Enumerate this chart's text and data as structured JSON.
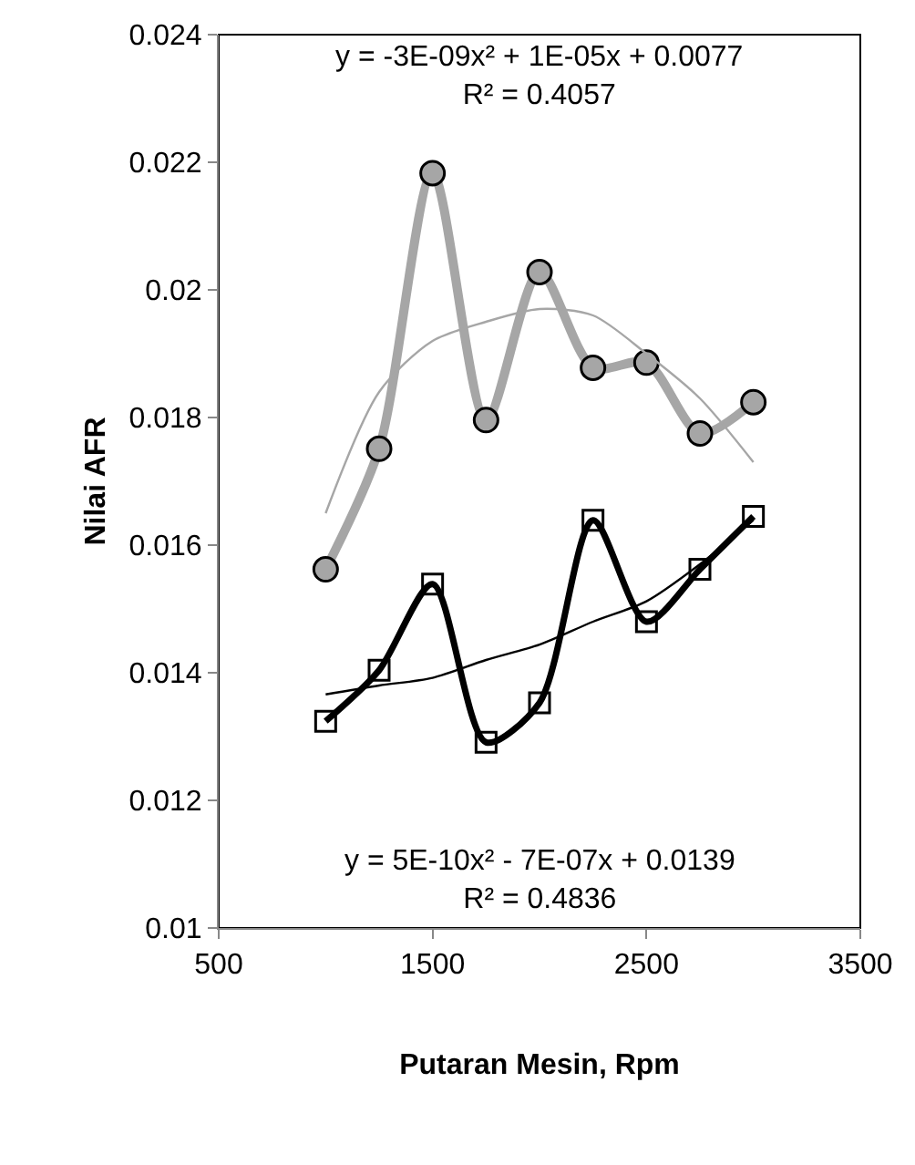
{
  "chart_data": {
    "type": "line",
    "xlabel": "Putaran Mesin, Rpm",
    "ylabel": "Nilai AFR",
    "x": [
      1000,
      1250,
      1500,
      1750,
      2000,
      2250,
      2500,
      2750,
      3000
    ],
    "series": [
      {
        "color": "#a6a6a6",
        "marker": "circle",
        "values": [
          0.01562,
          0.01751,
          0.02183,
          0.01796,
          0.02028,
          0.01878,
          0.01886,
          0.01775,
          0.01824
        ]
      },
      {
        "color": "#000000",
        "marker": "square",
        "values": [
          0.01324,
          0.01404,
          0.01539,
          0.01291,
          0.01353,
          0.01639,
          0.0148,
          0.01562,
          0.01645
        ]
      },
      {
        "color": "#a6a6a6",
        "marker": "none",
        "values": [
          0.0165,
          0.0184,
          0.0192,
          0.0195,
          0.0197,
          0.0196,
          0.019,
          0.0183,
          0.0173
        ]
      },
      {
        "color": "#000000",
        "marker": "none",
        "values": [
          0.01366,
          0.0138,
          0.01392,
          0.0142,
          0.01444,
          0.0148,
          0.01512,
          0.0157,
          0.01639
        ]
      }
    ],
    "xlim": [
      500,
      3500
    ],
    "xticks": [
      500,
      1500,
      2500,
      3500
    ],
    "ylim": [
      0.01,
      0.024
    ],
    "yticks": [
      0.01,
      0.012,
      0.014,
      0.016,
      0.018,
      0.02,
      0.022,
      0.024
    ],
    "grid": false,
    "annotations": [
      "y = -3E-09x² + 1E-05x + 0.0077\nR² = 0.4057",
      "y = 5E-10x² - 7E-07x + 0.0139\nR² = 0.4836"
    ]
  }
}
